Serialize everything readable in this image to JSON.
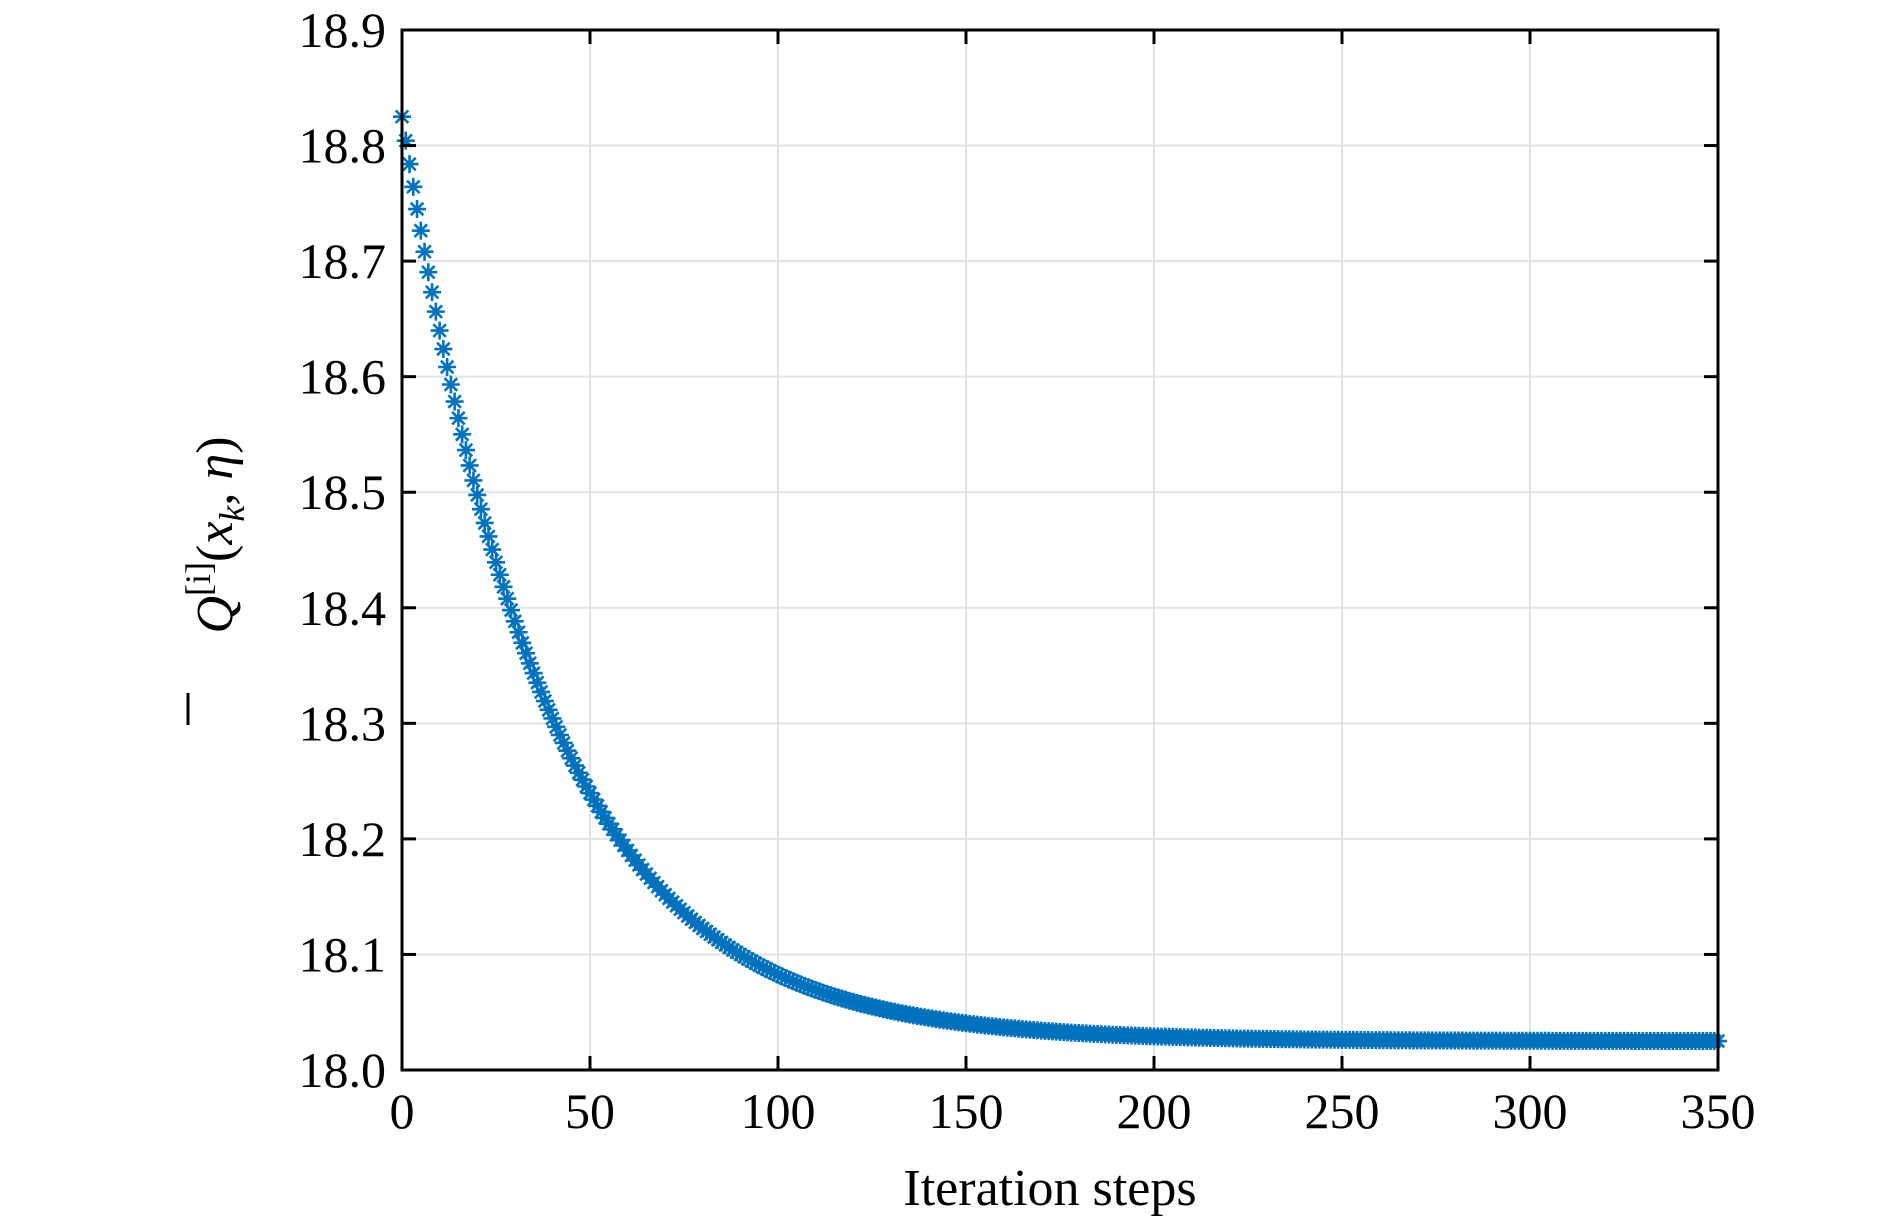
{
  "chart_data": {
    "type": "scatter",
    "title": "",
    "xlabel": "Iteration steps",
    "ylabel": {
      "symbol": "Q",
      "superscript": "[i]",
      "open_paren": "(",
      "arg1": "x",
      "arg1_subscript": "k",
      "separator": ", ",
      "arg2": "η",
      "close_paren": ")"
    },
    "xlim": [
      0,
      350
    ],
    "ylim": [
      18.0,
      18.9
    ],
    "xticks": [
      "0",
      "50",
      "100",
      "150",
      "200",
      "250",
      "300",
      "350"
    ],
    "yticks": [
      "18.0",
      "18.1",
      "18.2",
      "18.3",
      "18.4",
      "18.5",
      "18.6",
      "18.7",
      "18.8",
      "18.9"
    ],
    "grid": true,
    "marker": "asterisk",
    "series": [
      {
        "color": "#0072BD",
        "x_start": 0,
        "x_end": 350,
        "step": 1,
        "model": "exponential decay",
        "y_start": 18.825,
        "y_final": 18.025,
        "decay_constant": 38
      }
    ]
  }
}
